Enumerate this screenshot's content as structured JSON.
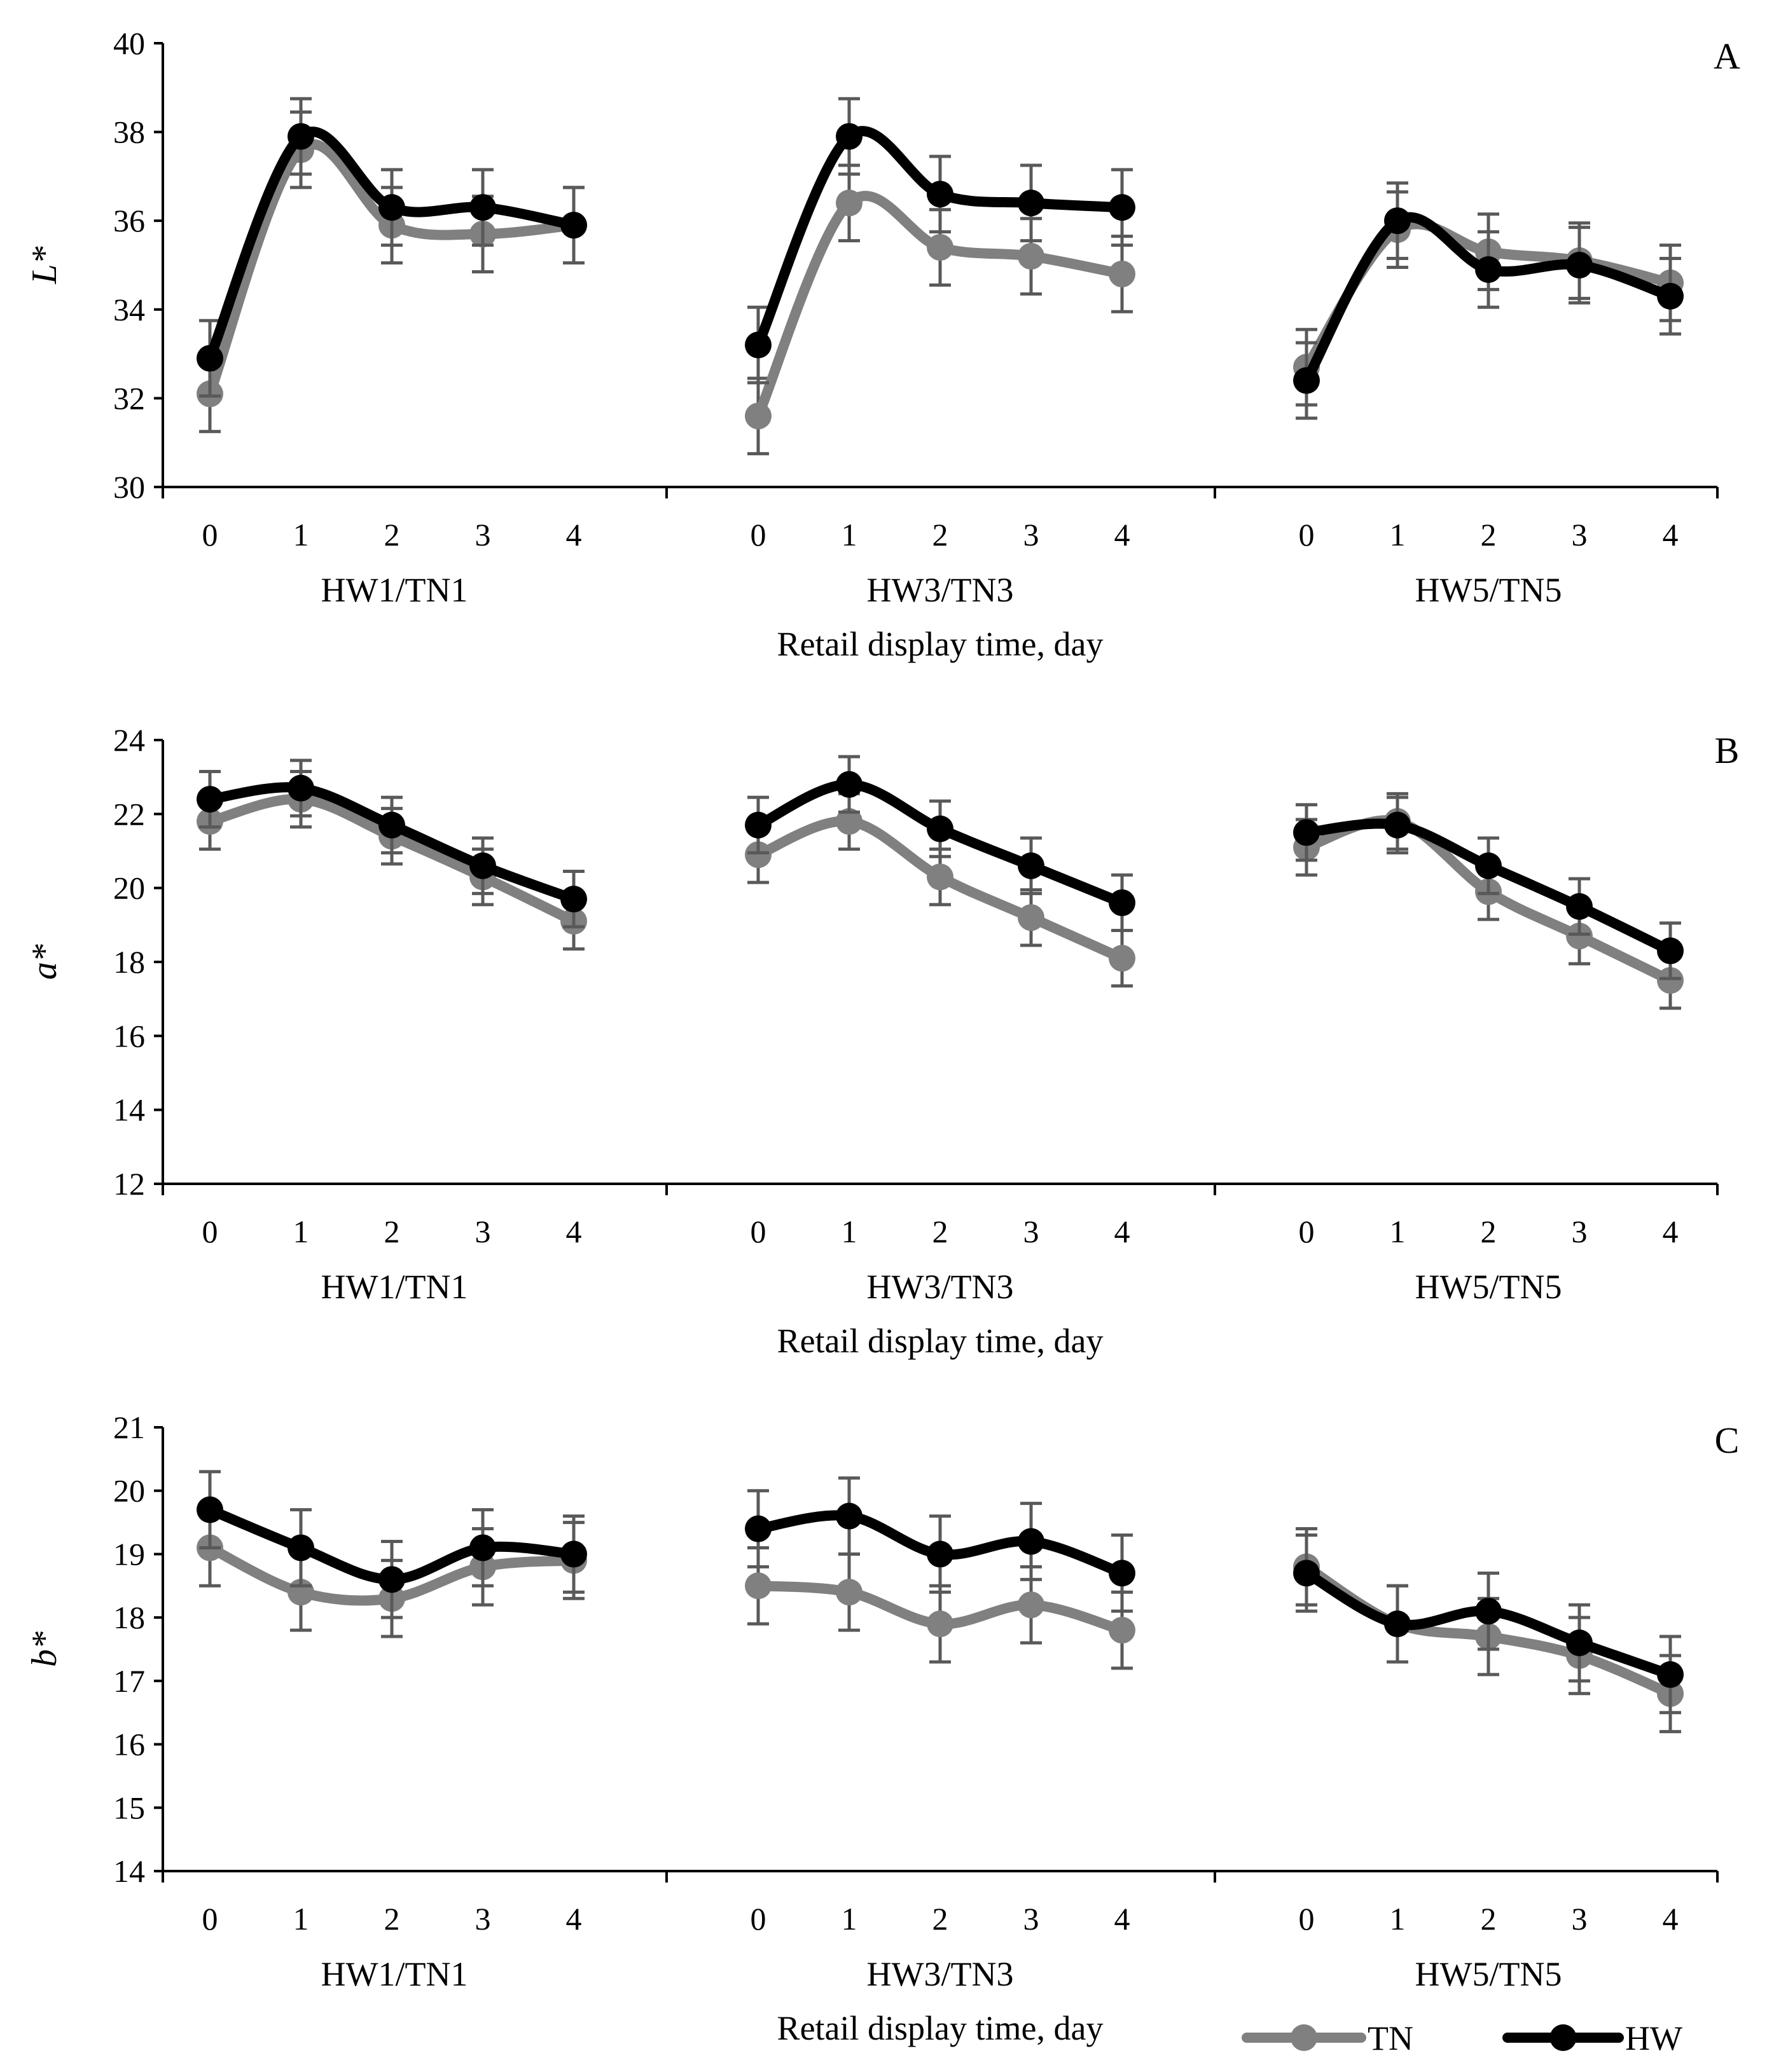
{
  "chart_data": [
    {
      "type": "line",
      "panel": "A",
      "ylabel": "L*",
      "ylim": [
        30,
        40
      ],
      "yticks": [
        30,
        32,
        34,
        36,
        38,
        40
      ],
      "xlabel": "Retail display time, day",
      "x": [
        0,
        1,
        2,
        3,
        4
      ],
      "groups": [
        {
          "label": "HW1/TN1",
          "series": [
            {
              "name": "TN",
              "values": [
                32.1,
                37.6,
                35.9,
                35.7,
                35.9
              ],
              "errors": [
                0.85,
                0.85,
                0.85,
                0.85,
                0.85
              ]
            },
            {
              "name": "HW",
              "values": [
                32.9,
                37.9,
                36.3,
                36.3,
                35.9
              ],
              "errors": [
                0.85,
                0.85,
                0.85,
                0.85,
                0.85
              ]
            }
          ]
        },
        {
          "label": "HW3/TN3",
          "series": [
            {
              "name": "TN",
              "values": [
                31.6,
                36.4,
                35.4,
                35.2,
                34.8
              ],
              "errors": [
                0.85,
                0.85,
                0.85,
                0.85,
                0.85
              ]
            },
            {
              "name": "HW",
              "values": [
                33.2,
                37.9,
                36.6,
                36.4,
                36.3
              ],
              "errors": [
                0.85,
                0.85,
                0.85,
                0.85,
                0.85
              ]
            }
          ]
        },
        {
          "label": "HW5/TN5",
          "series": [
            {
              "name": "TN",
              "values": [
                32.7,
                35.8,
                35.3,
                35.1,
                34.6
              ],
              "errors": [
                0.85,
                0.85,
                0.85,
                0.85,
                0.85
              ]
            },
            {
              "name": "HW",
              "values": [
                32.4,
                36.0,
                34.9,
                35.0,
                34.3
              ],
              "errors": [
                0.85,
                0.85,
                0.85,
                0.85,
                0.85
              ]
            }
          ]
        }
      ]
    },
    {
      "type": "line",
      "panel": "B",
      "ylabel": "a*",
      "ylim": [
        12,
        24
      ],
      "yticks": [
        12,
        14,
        16,
        18,
        20,
        22,
        24
      ],
      "xlabel": "Retail display time, day",
      "x": [
        0,
        1,
        2,
        3,
        4
      ],
      "groups": [
        {
          "label": "HW1/TN1",
          "series": [
            {
              "name": "TN",
              "values": [
                21.8,
                22.4,
                21.4,
                20.3,
                19.1
              ],
              "errors": [
                0.75,
                0.75,
                0.75,
                0.75,
                0.75
              ]
            },
            {
              "name": "HW",
              "values": [
                22.4,
                22.7,
                21.7,
                20.6,
                19.7
              ],
              "errors": [
                0.75,
                0.75,
                0.75,
                0.75,
                0.75
              ]
            }
          ]
        },
        {
          "label": "HW3/TN3",
          "series": [
            {
              "name": "TN",
              "values": [
                20.9,
                21.8,
                20.3,
                19.2,
                18.1
              ],
              "errors": [
                0.75,
                0.75,
                0.75,
                0.75,
                0.75
              ]
            },
            {
              "name": "HW",
              "values": [
                21.7,
                22.8,
                21.6,
                20.6,
                19.6
              ],
              "errors": [
                0.75,
                0.75,
                0.75,
                0.75,
                0.75
              ]
            }
          ]
        },
        {
          "label": "HW5/TN5",
          "series": [
            {
              "name": "TN",
              "values": [
                21.1,
                21.8,
                19.9,
                18.7,
                17.5
              ],
              "errors": [
                0.75,
                0.75,
                0.75,
                0.75,
                0.75
              ]
            },
            {
              "name": "HW",
              "values": [
                21.5,
                21.7,
                20.6,
                19.5,
                18.3
              ],
              "errors": [
                0.75,
                0.75,
                0.75,
                0.75,
                0.75
              ]
            }
          ]
        }
      ]
    },
    {
      "type": "line",
      "panel": "C",
      "ylabel": "b*",
      "ylim": [
        14,
        21
      ],
      "yticks": [
        14,
        15,
        16,
        17,
        18,
        19,
        20,
        21
      ],
      "xlabel": "Retail display time, day",
      "x": [
        0,
        1,
        2,
        3,
        4
      ],
      "groups": [
        {
          "label": "HW1/TN1",
          "series": [
            {
              "name": "TN",
              "values": [
                19.1,
                18.4,
                18.3,
                18.8,
                18.9
              ],
              "errors": [
                0.6,
                0.6,
                0.6,
                0.6,
                0.6
              ]
            },
            {
              "name": "HW",
              "values": [
                19.7,
                19.1,
                18.6,
                19.1,
                19.0
              ],
              "errors": [
                0.6,
                0.6,
                0.6,
                0.6,
                0.6
              ]
            }
          ]
        },
        {
          "label": "HW3/TN3",
          "series": [
            {
              "name": "TN",
              "values": [
                18.5,
                18.4,
                17.9,
                18.2,
                17.8
              ],
              "errors": [
                0.6,
                0.6,
                0.6,
                0.6,
                0.6
              ]
            },
            {
              "name": "HW",
              "values": [
                19.4,
                19.6,
                19.0,
                19.2,
                18.7
              ],
              "errors": [
                0.6,
                0.6,
                0.6,
                0.6,
                0.6
              ]
            }
          ]
        },
        {
          "label": "HW5/TN5",
          "series": [
            {
              "name": "TN",
              "values": [
                18.8,
                17.9,
                17.7,
                17.4,
                16.8
              ],
              "errors": [
                0.6,
                0.6,
                0.6,
                0.6,
                0.6
              ]
            },
            {
              "name": "HW",
              "values": [
                18.7,
                17.9,
                18.1,
                17.6,
                17.1
              ],
              "errors": [
                0.6,
                0.6,
                0.6,
                0.6,
                0.6
              ]
            }
          ]
        }
      ]
    }
  ],
  "legend": [
    {
      "name": "TN",
      "label": "TN",
      "color": "#808080"
    },
    {
      "name": "HW",
      "label": "HW",
      "color": "#000000"
    }
  ],
  "colors": {
    "TN": "#808080",
    "HW": "#000000",
    "error_bar": "#595959",
    "axis": "#000000"
  }
}
